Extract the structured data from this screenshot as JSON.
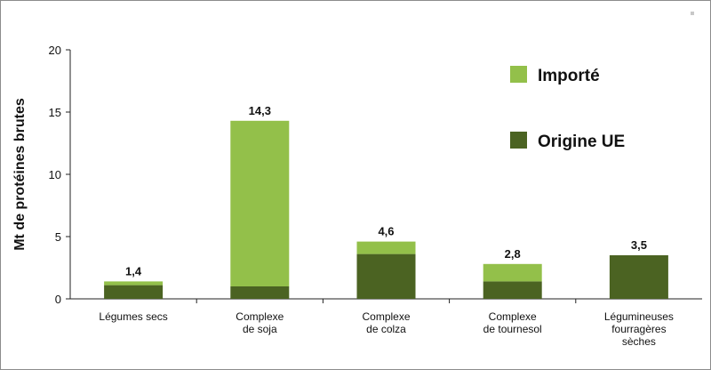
{
  "chart_data": {
    "type": "bar",
    "stacked": true,
    "ylabel": "Mt de protéines brutes",
    "xlabel": "",
    "ylim": [
      0,
      20
    ],
    "yticks": [
      "0",
      "5",
      "10",
      "15",
      "20"
    ],
    "yticks_values": [
      0,
      5,
      10,
      15,
      20
    ],
    "grid": false,
    "legend_position": "top-right",
    "categories": [
      [
        "Légumes secs"
      ],
      [
        "Complexe",
        "de soja"
      ],
      [
        "Complexe",
        "de colza"
      ],
      [
        "Complexe",
        "de tournesol"
      ],
      [
        "Légumineuses",
        "fourragères",
        "sèches"
      ]
    ],
    "series": [
      {
        "name": "Origine UE",
        "color": "#4b6322",
        "values": [
          1.1,
          1.0,
          3.6,
          1.4,
          3.5
        ]
      },
      {
        "name": "Importé",
        "color": "#93c04a",
        "values": [
          0.3,
          13.3,
          1.0,
          1.4,
          0.0
        ]
      }
    ],
    "totals": [
      1.4,
      14.3,
      4.6,
      2.8,
      3.5
    ],
    "total_labels": [
      "1,4",
      "14,3",
      "4,6",
      "2,8",
      "3,5"
    ],
    "legend": [
      {
        "name": "Importé",
        "color": "#93c04a"
      },
      {
        "name": "Origine UE",
        "color": "#4b6322"
      }
    ]
  }
}
